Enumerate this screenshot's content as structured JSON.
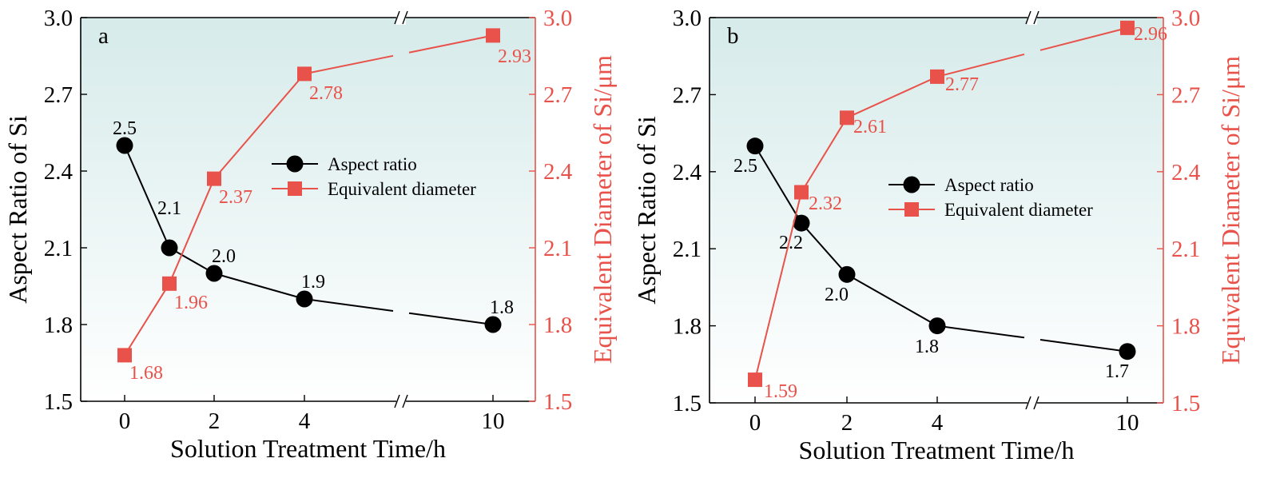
{
  "colors": {
    "aspect": "#000000",
    "equivalent": "#e8524a",
    "bg_top": "#d6ebea",
    "bg_bottom": "#ffffff"
  },
  "chart_data": [
    {
      "type": "line",
      "panel_label": "a",
      "x_tick_labels": [
        "0",
        "2",
        "4",
        "10"
      ],
      "xlabel": "Solution Treatment Time/h",
      "ylabel_left": "Aspect Ratio of Si",
      "ylabel_right": "Equivalent Diameter of Si/μm",
      "ylim": [
        1.5,
        3.0
      ],
      "yticks": [
        "1.5",
        "1.8",
        "2.1",
        "2.4",
        "2.7",
        "3.0"
      ],
      "legend": [
        "Aspect ratio",
        "Equivalent diameter"
      ],
      "series": [
        {
          "name": "Aspect ratio",
          "axis": "left",
          "x": [
            0,
            1,
            2,
            4,
            10
          ],
          "values": [
            2.5,
            2.1,
            2.0,
            1.9,
            1.8
          ],
          "labels": [
            "2.5",
            "2.1",
            "2.0",
            "1.9",
            "1.8"
          ]
        },
        {
          "name": "Equivalent diameter",
          "axis": "right",
          "x": [
            0,
            1,
            2,
            4,
            10
          ],
          "values": [
            1.68,
            1.96,
            2.37,
            2.78,
            2.93
          ],
          "labels": [
            "1.68",
            "1.96",
            "2.37",
            "2.78",
            "2.93"
          ]
        }
      ]
    },
    {
      "type": "line",
      "panel_label": "b",
      "x_tick_labels": [
        "0",
        "2",
        "4",
        "10"
      ],
      "xlabel": "Solution Treatment Time/h",
      "ylabel_left": "Aspect Ratio of Si",
      "ylabel_right": "Equivalent Diameter of Si/μm",
      "ylim": [
        1.5,
        3.0
      ],
      "yticks": [
        "1.5",
        "1.8",
        "2.1",
        "2.4",
        "2.7",
        "3.0"
      ],
      "legend": [
        "Aspect ratio",
        "Equivalent diameter"
      ],
      "series": [
        {
          "name": "Aspect ratio",
          "axis": "left",
          "x": [
            0,
            1,
            2,
            4,
            10
          ],
          "values": [
            2.5,
            2.2,
            2.0,
            1.8,
            1.7
          ],
          "labels": [
            "2.5",
            "2.2",
            "2.0",
            "1.8",
            "1.7"
          ]
        },
        {
          "name": "Equivalent diameter",
          "axis": "right",
          "x": [
            0,
            1,
            2,
            4,
            10
          ],
          "values": [
            1.59,
            2.32,
            2.61,
            2.77,
            2.96
          ],
          "labels": [
            "1.59",
            "2.32",
            "2.61",
            "2.77",
            "2.96"
          ]
        }
      ]
    }
  ]
}
